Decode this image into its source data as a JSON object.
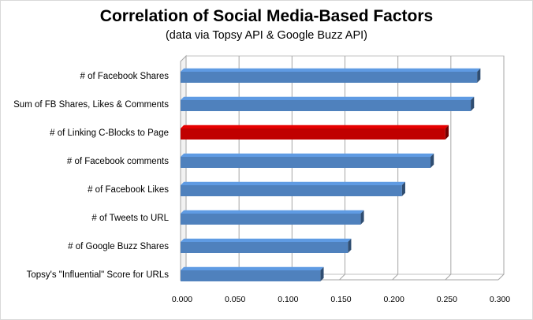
{
  "chart_data": {
    "type": "bar",
    "orientation": "horizontal",
    "style": "3d",
    "title": "Correlation of Social Media-Based Factors",
    "subtitle": "(data via Topsy API & Google Buzz API)",
    "categories": [
      "# of Facebook Shares",
      "Sum of FB Shares, Likes & Comments",
      "# of Linking C-Blocks to Page",
      "# of Facebook comments",
      "# of Facebook Likes",
      "# of Tweets to URL",
      "# of Google Buzz Shares",
      "Topsy's \"Influential\" Score for URLs"
    ],
    "values": [
      0.28,
      0.274,
      0.25,
      0.236,
      0.209,
      0.17,
      0.158,
      0.132
    ],
    "highlight_index": 2,
    "bar_color": "#4f81bd",
    "highlight_color": "#c00000",
    "xlim": [
      0,
      0.3
    ],
    "xticks": [
      "0.000",
      "0.050",
      "0.100",
      "0.150",
      "0.200",
      "0.250",
      "0.300"
    ],
    "grid": true
  }
}
